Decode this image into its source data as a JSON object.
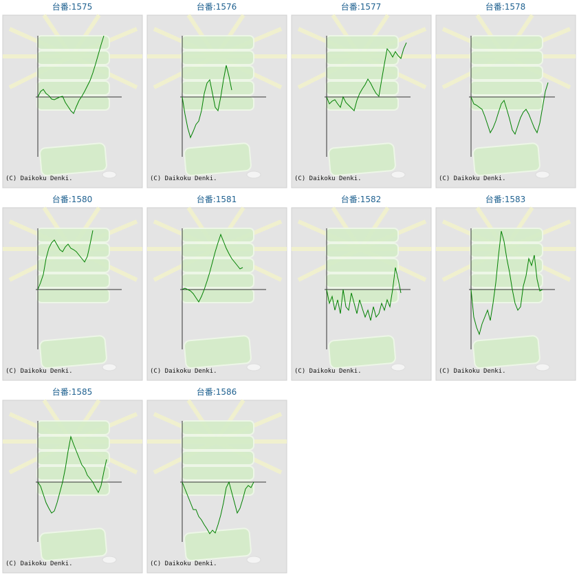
{
  "chart_data": [
    {
      "type": "line",
      "title": "台番:1575",
      "annotation": "(C) Daikoku Denki.",
      "color": "#008000",
      "ylim": [
        -90,
        90
      ],
      "values": [
        0,
        8,
        11,
        5,
        2,
        -3,
        -4,
        -2,
        0,
        1,
        -8,
        -14,
        -20,
        -24,
        -14,
        -5,
        1,
        8,
        16,
        24,
        35,
        48,
        62,
        76,
        89
      ]
    },
    {
      "type": "line",
      "title": "台番:1576",
      "annotation": "(C) Daikoku Denki.",
      "color": "#008000",
      "ylim": [
        -90,
        90
      ],
      "values": [
        0,
        -25,
        -45,
        -59,
        -50,
        -40,
        -35,
        -20,
        5,
        20,
        25,
        5,
        -15,
        -20,
        0,
        25,
        46,
        30,
        10
      ]
    },
    {
      "type": "line",
      "title": "台番:1577",
      "annotation": "(C) Daikoku Denki.",
      "color": "#008000",
      "ylim": [
        -90,
        90
      ],
      "values": [
        0,
        -10,
        -6,
        -4,
        -10,
        -15,
        0,
        -8,
        -12,
        -16,
        -20,
        -5,
        5,
        12,
        18,
        26,
        20,
        12,
        5,
        1,
        25,
        48,
        70,
        65,
        58,
        66,
        60,
        56,
        70,
        79
      ]
    },
    {
      "type": "line",
      "title": "台番:1578",
      "annotation": "(C) Daikoku Denki.",
      "color": "#008000",
      "ylim": [
        -90,
        90
      ],
      "values": [
        0,
        -10,
        -12,
        -15,
        -18,
        -28,
        -40,
        -52,
        -45,
        -35,
        -22,
        -10,
        -5,
        -18,
        -32,
        -48,
        -54,
        -42,
        -30,
        -22,
        -18,
        -25,
        -35,
        -45,
        -52,
        -38,
        -15,
        8,
        21
      ]
    },
    {
      "type": "line",
      "title": "台番:1580",
      "annotation": "(C) Daikoku Denki.",
      "color": "#008000",
      "ylim": [
        -90,
        90
      ],
      "values": [
        0,
        10,
        22,
        45,
        60,
        68,
        72,
        65,
        58,
        55,
        62,
        66,
        60,
        58,
        55,
        50,
        45,
        40,
        48,
        66,
        86
      ]
    },
    {
      "type": "line",
      "title": "台番:1581",
      "annotation": "(C) Daikoku Denki.",
      "color": "#008000",
      "ylim": [
        -90,
        90
      ],
      "values": [
        0,
        2,
        0,
        -2,
        -6,
        -12,
        -18,
        -10,
        0,
        12,
        25,
        40,
        55,
        68,
        80,
        70,
        60,
        52,
        45,
        40,
        35,
        30,
        32
      ]
    },
    {
      "type": "line",
      "title": "台番:1582",
      "annotation": "(C) Daikoku Denki.",
      "color": "#008000",
      "ylim": [
        -90,
        90
      ],
      "values": [
        0,
        -20,
        -10,
        -30,
        -15,
        -35,
        0,
        -25,
        -30,
        -5,
        -20,
        -35,
        -15,
        -28,
        -40,
        -30,
        -45,
        -25,
        -40,
        -35,
        -20,
        -30,
        -15,
        -25,
        0,
        32,
        15,
        -5
      ]
    },
    {
      "type": "line",
      "title": "台番:1583",
      "annotation": "(C) Daikoku Denki.",
      "color": "#008000",
      "ylim": [
        -90,
        90
      ],
      "values": [
        0,
        -40,
        -55,
        -65,
        -50,
        -40,
        -30,
        -45,
        -20,
        10,
        50,
        85,
        70,
        45,
        25,
        0,
        -20,
        -30,
        -25,
        5,
        20,
        45,
        35,
        50,
        15,
        -2,
        0
      ]
    },
    {
      "type": "line",
      "title": "台番:1585",
      "annotation": "(C) Daikoku Denki.",
      "color": "#008000",
      "ylim": [
        -90,
        90
      ],
      "values": [
        0,
        -6,
        -18,
        -30,
        -38,
        -45,
        -42,
        -30,
        -15,
        0,
        20,
        45,
        66,
        55,
        45,
        35,
        25,
        20,
        10,
        5,
        0,
        -8,
        -15,
        -5,
        15,
        33
      ]
    },
    {
      "type": "line",
      "title": "台番:1586",
      "annotation": "(C) Daikoku Denki.",
      "color": "#008000",
      "ylim": [
        -90,
        90
      ],
      "values": [
        0,
        -10,
        -20,
        -30,
        -40,
        -40,
        -50,
        -55,
        -62,
        -68,
        -75,
        -70,
        -74,
        -62,
        -48,
        -30,
        -8,
        0,
        -15,
        -30,
        -45,
        -38,
        -25,
        -10,
        -5,
        -8,
        0
      ]
    }
  ]
}
